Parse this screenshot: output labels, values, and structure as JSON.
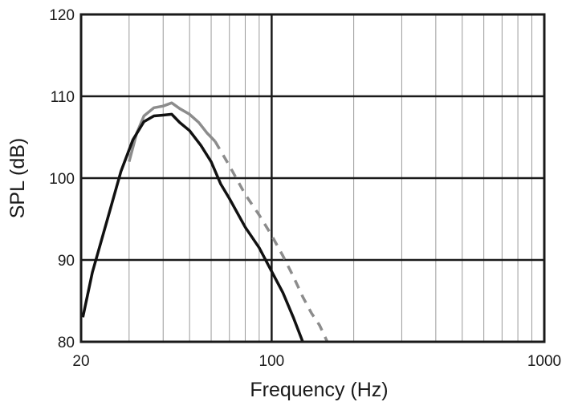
{
  "chart_data": {
    "type": "line",
    "title": "",
    "xlabel": "Frequency (Hz)",
    "ylabel": "SPL (dB)",
    "xscale": "log",
    "xlim": [
      20,
      1000
    ],
    "ylim": [
      80,
      120
    ],
    "xticks": [
      20,
      100,
      1000
    ],
    "xtick_labels": [
      "20",
      "100",
      "1000"
    ],
    "yticks": [
      80,
      90,
      100,
      110,
      120
    ],
    "ytick_labels": [
      "80",
      "90",
      "100",
      "110",
      "120"
    ],
    "grid": true,
    "legend": "none",
    "series": [
      {
        "style": "solid",
        "color": "#8c8c8c",
        "points": [
          [
            30,
            102
          ],
          [
            32,
            105.5
          ],
          [
            34,
            107.6
          ],
          [
            37,
            108.6
          ],
          [
            40,
            108.8
          ],
          [
            43,
            109.2
          ],
          [
            46,
            108.5
          ],
          [
            50,
            107.8
          ],
          [
            54,
            106.8
          ],
          [
            58,
            105.5
          ],
          [
            62,
            104.5
          ]
        ]
      },
      {
        "style": "dashed",
        "color": "#8c8c8c",
        "points": [
          [
            62,
            104.5
          ],
          [
            70,
            101.5
          ],
          [
            80,
            98
          ],
          [
            90,
            95.5
          ],
          [
            100,
            93
          ],
          [
            110,
            90.5
          ],
          [
            120,
            88
          ],
          [
            130,
            85.5
          ],
          [
            140,
            83.5
          ],
          [
            150,
            82
          ],
          [
            160,
            80
          ]
        ]
      },
      {
        "style": "solid",
        "color": "#111111",
        "points": [
          [
            20.3,
            83
          ],
          [
            22,
            88.5
          ],
          [
            25,
            95
          ],
          [
            28,
            100.8
          ],
          [
            31,
            104.7
          ],
          [
            34,
            106.9
          ],
          [
            37,
            107.6
          ],
          [
            40,
            107.7
          ],
          [
            43,
            107.8
          ],
          [
            46,
            106.8
          ],
          [
            50,
            105.8
          ],
          [
            55,
            104
          ],
          [
            60,
            102
          ],
          [
            65,
            99.3
          ],
          [
            70,
            97.5
          ],
          [
            80,
            94
          ],
          [
            90,
            91.5
          ],
          [
            100,
            88.6
          ],
          [
            110,
            86
          ],
          [
            120,
            83
          ],
          [
            130,
            80
          ]
        ]
      }
    ]
  }
}
